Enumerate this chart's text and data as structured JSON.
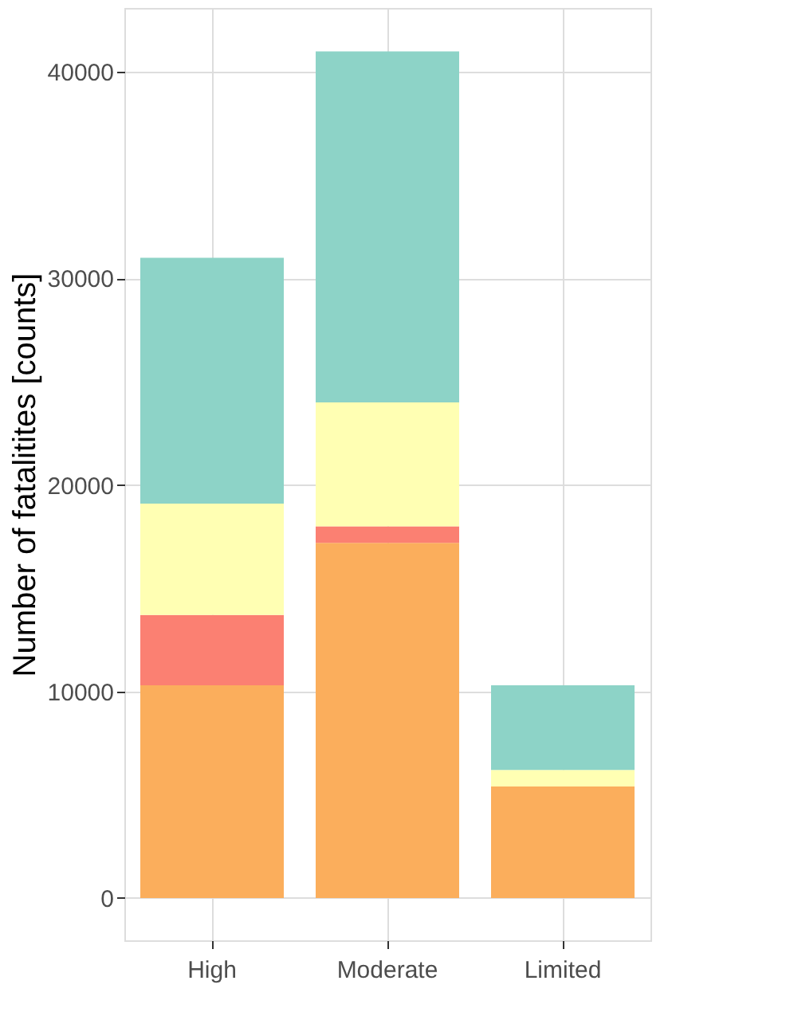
{
  "chart_data": {
    "type": "bar",
    "stacked": true,
    "ylabel": "Number of fatalitites [counts]",
    "categories": [
      "High",
      "Moderate",
      "Limited"
    ],
    "series": [
      {
        "color": "#fbae5c",
        "values": [
          10300,
          17200,
          5400
        ]
      },
      {
        "color": "#fb8072",
        "values": [
          3400,
          800,
          0
        ]
      },
      {
        "color": "#ffffb3",
        "values": [
          5400,
          6000,
          800
        ]
      },
      {
        "color": "#8dd3c7",
        "values": [
          11900,
          17000,
          4100
        ]
      }
    ],
    "ylim": [
      -2050,
      43100
    ],
    "yticks": [
      0,
      10000,
      20000,
      30000,
      40000
    ],
    "grid": true
  }
}
